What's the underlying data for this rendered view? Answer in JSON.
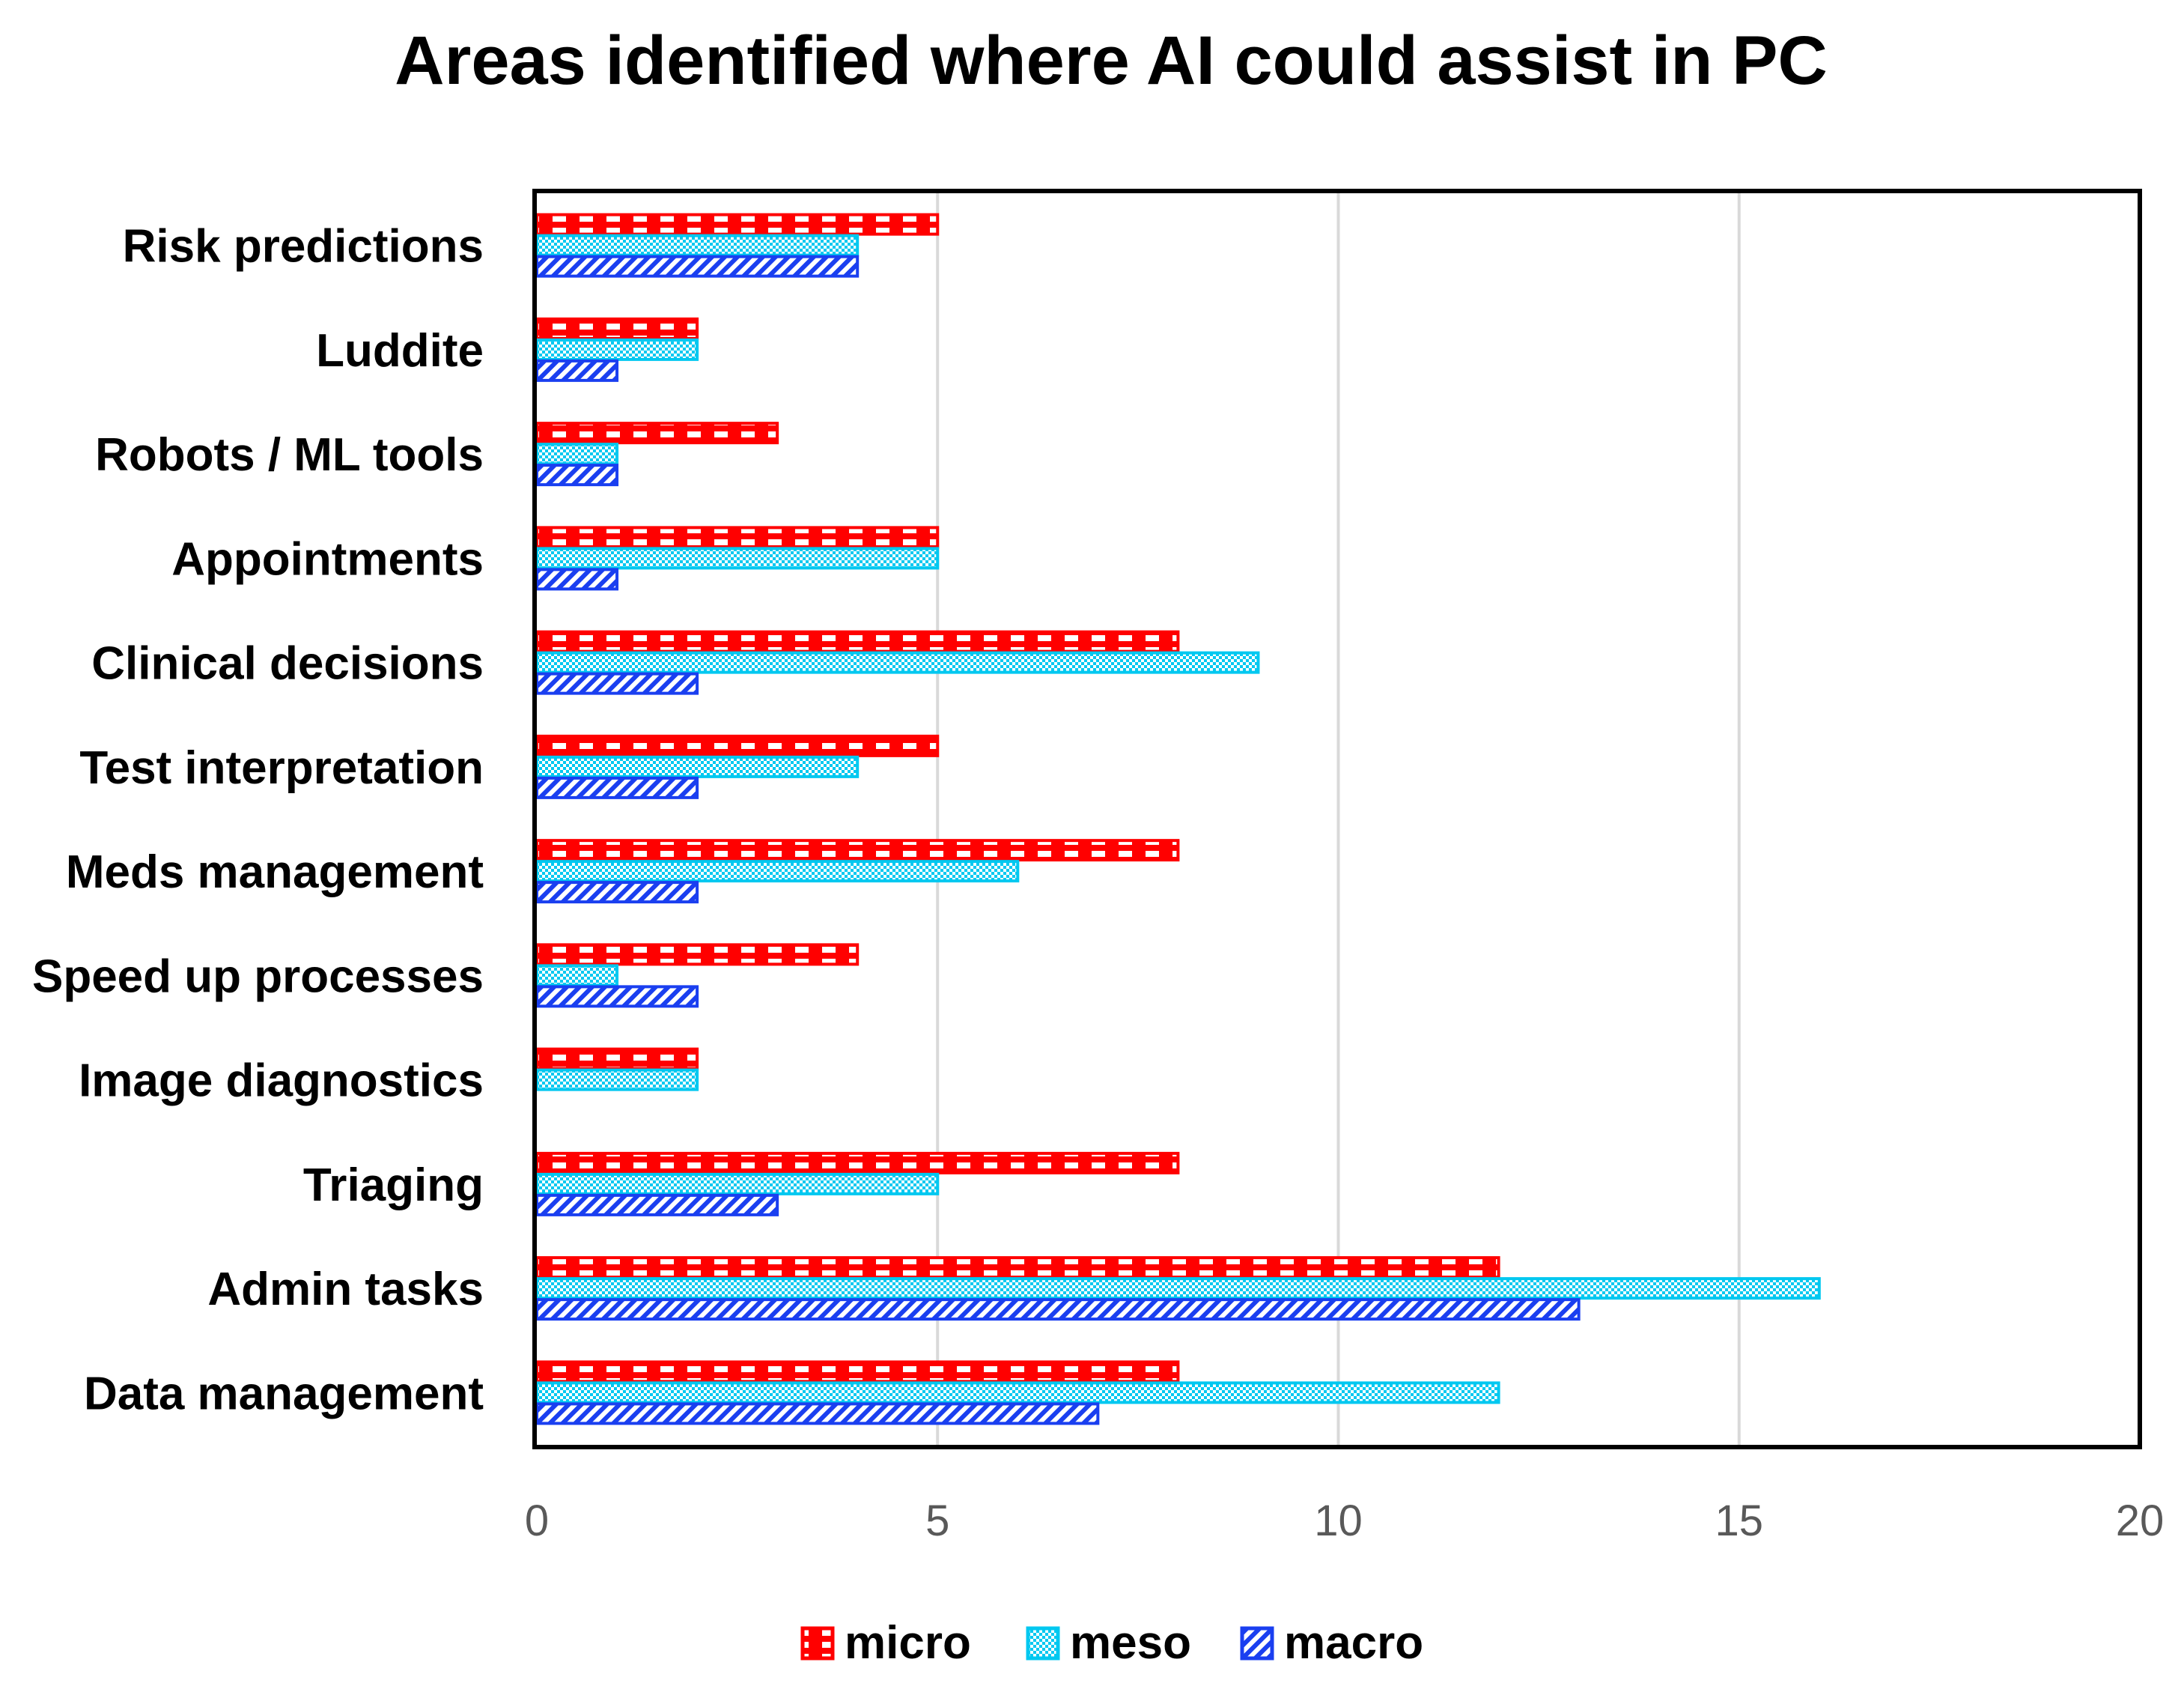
{
  "chart_data": {
    "type": "bar",
    "orientation": "horizontal",
    "title": "Areas identified where AI could assist in PC",
    "categories": [
      "Risk predictions",
      "Luddite",
      "Robots / ML tools",
      "Appointments",
      "Clinical decisions",
      "Test interpretation",
      "Meds management",
      "Speed up processes",
      "Image diagnostics",
      "Triaging",
      "Admin tasks",
      "Data management"
    ],
    "series": [
      {
        "name": "micro",
        "color": "#ff0000",
        "pattern": "checker-large",
        "values": [
          5,
          2,
          3,
          5,
          8,
          5,
          8,
          4,
          2,
          8,
          12,
          8
        ]
      },
      {
        "name": "meso",
        "color": "#00c8f0",
        "pattern": "checker-small",
        "values": [
          4,
          2,
          1,
          5,
          9,
          4,
          6,
          1,
          2,
          5,
          16,
          12
        ]
      },
      {
        "name": "macro",
        "color": "#1a3ff0",
        "pattern": "diagonal-stripes",
        "values": [
          4,
          1,
          1,
          1,
          2,
          2,
          2,
          2,
          0,
          3,
          13,
          7
        ]
      }
    ],
    "xlim": [
      0,
      20
    ],
    "xticks": [
      "0",
      "5",
      "10",
      "15",
      "20"
    ],
    "grid": true,
    "legend_position": "bottom"
  }
}
